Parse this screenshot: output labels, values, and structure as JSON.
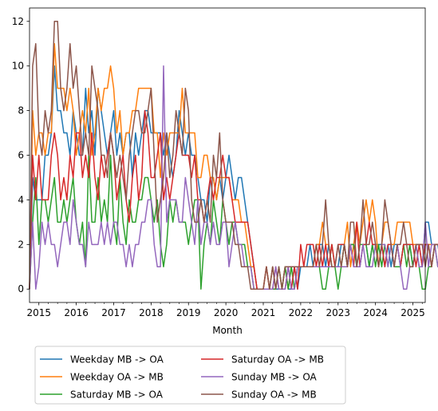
{
  "chart_data": {
    "type": "line",
    "title": "",
    "xlabel": "Month",
    "ylabel": "",
    "xlim": [
      2014.75,
      2025.33
    ],
    "ylim": [
      -0.6,
      12.6
    ],
    "x_ticks": [
      2015,
      2016,
      2017,
      2018,
      2019,
      2020,
      2021,
      2022,
      2023,
      2024,
      2025
    ],
    "x_tick_labels": [
      "2015",
      "2016",
      "2017",
      "2018",
      "2019",
      "2020",
      "2021",
      "2022",
      "2023",
      "2024",
      "2025"
    ],
    "y_ticks": [
      0,
      2,
      4,
      6,
      8,
      10,
      12
    ],
    "y_tick_labels": [
      "0",
      "2",
      "4",
      "6",
      "8",
      "10",
      "12"
    ],
    "grid": false,
    "legend_position": "below-left",
    "legend_columns": 2,
    "x_start": "2014-10",
    "series": [
      {
        "name": "Weekday MB -> OA",
        "color": "#1f77b4",
        "values": [
          0,
          5,
          4,
          4,
          4,
          6,
          6,
          7,
          10,
          8,
          8,
          7,
          7,
          6,
          8,
          7,
          6,
          6,
          9,
          7,
          8,
          6,
          9,
          8,
          7,
          6,
          7,
          8,
          6,
          7,
          6,
          7,
          7,
          5,
          7,
          6,
          7,
          8,
          8,
          7,
          7,
          7,
          7,
          6,
          7,
          6,
          5,
          6,
          8,
          7,
          6,
          7,
          6,
          6,
          5,
          4,
          4,
          3,
          5,
          5,
          4,
          5,
          4,
          5,
          6,
          5,
          4,
          5,
          5,
          4,
          3,
          2,
          1,
          0,
          0,
          0,
          0,
          0,
          1,
          0,
          0,
          0,
          1,
          0,
          0,
          1,
          0,
          1,
          1,
          1,
          2,
          1,
          2,
          2,
          2,
          1,
          2,
          1,
          1,
          1,
          2,
          2,
          1,
          2,
          2,
          1,
          1,
          2,
          2,
          1,
          2,
          2,
          2,
          2,
          1,
          2,
          1,
          2,
          2,
          1,
          2,
          2,
          2,
          1,
          2,
          2,
          1,
          3,
          3,
          2,
          2,
          2,
          1,
          2,
          1,
          2,
          2
        ]
      },
      {
        "name": "Weekday OA -> MB",
        "color": "#ff7f0e",
        "values": [
          0,
          8,
          6,
          7,
          7,
          6,
          7,
          7,
          11,
          9,
          9,
          9,
          8,
          9,
          8,
          6,
          7,
          8,
          7,
          9,
          6,
          7,
          9,
          8,
          9,
          9,
          10,
          9,
          7,
          8,
          6,
          7,
          7,
          8,
          8,
          9,
          9,
          9,
          9,
          9,
          7,
          7,
          5,
          7,
          6,
          7,
          7,
          7,
          7,
          9,
          7,
          7,
          7,
          7,
          5,
          5,
          6,
          6,
          5,
          5,
          4,
          5,
          5,
          5,
          5,
          4,
          4,
          4,
          3,
          3,
          2,
          1,
          1,
          0,
          0,
          0,
          1,
          0,
          1,
          0,
          1,
          0,
          1,
          0,
          1,
          1,
          1,
          1,
          1,
          1,
          1,
          1,
          2,
          2,
          3,
          2,
          2,
          1,
          1,
          1,
          1,
          2,
          3,
          1,
          2,
          3,
          2,
          3,
          4,
          3,
          4,
          3,
          1,
          2,
          3,
          3,
          2,
          2,
          3,
          3,
          3,
          3,
          3,
          2,
          2,
          2,
          2,
          2,
          2,
          2,
          2,
          2,
          2,
          2,
          1,
          2,
          2,
          3,
          2,
          2,
          2
        ]
      },
      {
        "name": "Saturday MB -> OA",
        "color": "#2ca02c",
        "values": [
          0,
          3,
          5,
          2,
          4,
          4,
          3,
          4,
          5,
          3,
          3,
          4,
          3,
          4,
          5,
          3,
          2,
          3,
          1,
          6,
          3,
          3,
          5,
          3,
          4,
          3,
          6,
          3,
          2,
          5,
          3,
          2,
          4,
          3,
          3,
          4,
          4,
          5,
          5,
          4,
          3,
          4,
          2,
          1,
          2,
          4,
          3,
          4,
          3,
          3,
          3,
          2,
          3,
          4,
          4,
          0,
          2,
          3,
          2,
          4,
          3,
          2,
          4,
          3,
          2,
          3,
          3,
          2,
          2,
          2,
          1,
          1,
          0,
          0,
          0,
          0,
          0,
          0,
          0,
          0,
          1,
          0,
          1,
          0,
          1,
          0,
          1,
          1,
          1,
          1,
          1,
          1,
          1,
          1,
          0,
          0,
          1,
          2,
          1,
          0,
          1,
          2,
          1,
          2,
          2,
          1,
          2,
          2,
          2,
          1,
          2,
          1,
          2,
          1,
          2,
          1,
          2,
          1,
          1,
          1,
          2,
          1,
          2,
          1,
          2,
          1,
          0,
          0,
          1,
          1,
          2,
          1,
          1,
          2,
          1,
          1,
          1,
          1,
          0,
          1,
          0
        ]
      },
      {
        "name": "Saturday OA -> MB",
        "color": "#d62728",
        "values": [
          0,
          6,
          4,
          6,
          4,
          4,
          4,
          6,
          7,
          6,
          4,
          5,
          4,
          6,
          5,
          7,
          7,
          5,
          6,
          5,
          7,
          5,
          4,
          6,
          5,
          6,
          7,
          6,
          4,
          5,
          6,
          4,
          3,
          5,
          6,
          4,
          5,
          8,
          7,
          5,
          5,
          6,
          7,
          4,
          5,
          4,
          5,
          6,
          7,
          6,
          6,
          6,
          5,
          6,
          4,
          4,
          3,
          4,
          5,
          4,
          5,
          5,
          6,
          5,
          5,
          4,
          3,
          3,
          3,
          3,
          3,
          2,
          1,
          0,
          0,
          0,
          1,
          0,
          0,
          1,
          0,
          0,
          0,
          1,
          0,
          1,
          0,
          2,
          1,
          2,
          2,
          2,
          1,
          2,
          1,
          2,
          1,
          2,
          1,
          2,
          2,
          2,
          1,
          2,
          1,
          3,
          1,
          2,
          2,
          3,
          2,
          2,
          1,
          2,
          1,
          2,
          2,
          1,
          2,
          1,
          2,
          2,
          2,
          2,
          1,
          2,
          1,
          2,
          2,
          1,
          2,
          2,
          2,
          2,
          2,
          1,
          3,
          2,
          2,
          1,
          2
        ]
      },
      {
        "name": "Sunday MB -> OA",
        "color": "#9467bd",
        "values": [
          0,
          3,
          0,
          1,
          3,
          2,
          3,
          2,
          2,
          1,
          2,
          3,
          3,
          2,
          4,
          3,
          2,
          2,
          1,
          3,
          2,
          2,
          2,
          3,
          2,
          3,
          2,
          3,
          3,
          2,
          2,
          1,
          2,
          1,
          2,
          2,
          3,
          3,
          4,
          4,
          2,
          1,
          1,
          10,
          3,
          4,
          4,
          4,
          3,
          3,
          5,
          4,
          3,
          2,
          4,
          2,
          3,
          3,
          2,
          3,
          2,
          2,
          3,
          3,
          1,
          2,
          3,
          2,
          2,
          1,
          1,
          1,
          0,
          0,
          0,
          0,
          0,
          0,
          0,
          1,
          0,
          0,
          0,
          1,
          0,
          0,
          1,
          1,
          1,
          1,
          1,
          1,
          1,
          1,
          1,
          1,
          1,
          1,
          1,
          1,
          1,
          1,
          1,
          2,
          1,
          1,
          1,
          2,
          1,
          1,
          1,
          2,
          1,
          2,
          2,
          1,
          2,
          1,
          2,
          1,
          0,
          0,
          1,
          1,
          2,
          1,
          1,
          3,
          1,
          2,
          2,
          1,
          1,
          1,
          2,
          1,
          1,
          2,
          1,
          4,
          3
        ]
      },
      {
        "name": "Sunday OA -> MB",
        "color": "#8c564b",
        "values": [
          0,
          10,
          11,
          7,
          6,
          8,
          7,
          8,
          12,
          12,
          9,
          8,
          9,
          11,
          9,
          10,
          8,
          6,
          7,
          6,
          10,
          9,
          8,
          6,
          6,
          5,
          7,
          6,
          5,
          6,
          5,
          4,
          6,
          7,
          8,
          8,
          7,
          7,
          8,
          9,
          6,
          3,
          4,
          5,
          7,
          5,
          6,
          8,
          7,
          6,
          9,
          8,
          4,
          3,
          3,
          4,
          3,
          4,
          3,
          6,
          5,
          7,
          4,
          3,
          3,
          3,
          2,
          2,
          1,
          1,
          1,
          0,
          0,
          0,
          0,
          0,
          1,
          0,
          1,
          0,
          1,
          0,
          1,
          1,
          1,
          1,
          1,
          1,
          1,
          1,
          1,
          1,
          2,
          1,
          2,
          4,
          2,
          1,
          1,
          2,
          1,
          2,
          1,
          3,
          3,
          1,
          2,
          4,
          2,
          2,
          3,
          2,
          1,
          2,
          4,
          3,
          2,
          1,
          2,
          2,
          3,
          2,
          1,
          1,
          2,
          2,
          2,
          1,
          2,
          1,
          2,
          2,
          2,
          2,
          2,
          2,
          2,
          2,
          2,
          1,
          4
        ]
      }
    ]
  }
}
